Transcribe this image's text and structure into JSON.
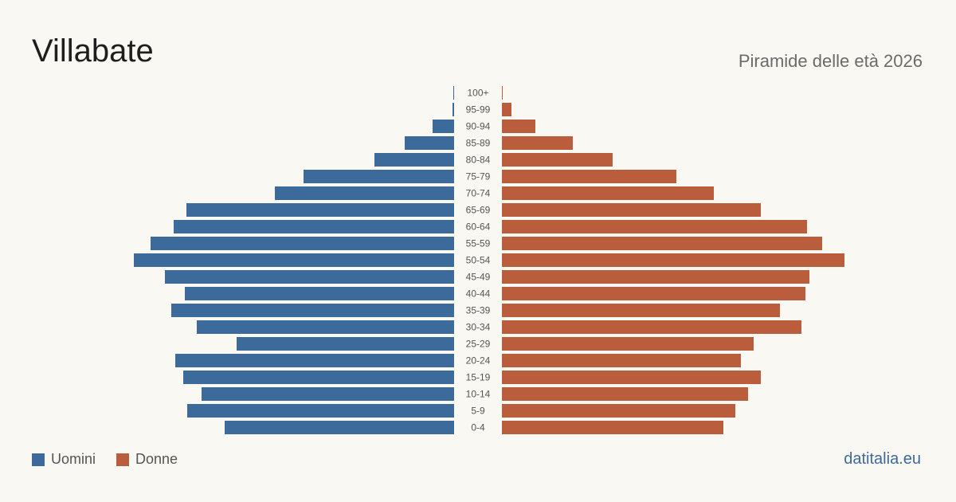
{
  "header": {
    "title": "Villabate",
    "subtitle": "Piramide delle età 2026"
  },
  "legend": {
    "men_label": "Uomini",
    "women_label": "Donne"
  },
  "source": "datitalia.eu",
  "colors": {
    "men": "#3b6a9b",
    "women": "#b95d3d"
  },
  "chart_data": {
    "type": "bar",
    "orientation": "horizontal-pyramid",
    "categories": [
      "100+",
      "95-99",
      "90-94",
      "85-89",
      "80-84",
      "75-79",
      "70-74",
      "65-69",
      "60-64",
      "55-59",
      "50-54",
      "45-49",
      "40-44",
      "35-39",
      "30-34",
      "25-29",
      "20-24",
      "15-19",
      "10-14",
      "5-9",
      "0-4"
    ],
    "series": [
      {
        "name": "Uomini",
        "values": [
          1,
          2,
          27,
          62,
          100,
          189,
          225,
          336,
          352,
          381,
          402,
          363,
          338,
          355,
          323,
          273,
          350,
          340,
          317,
          335,
          288
        ]
      },
      {
        "name": "Donne",
        "values": [
          1,
          12,
          42,
          89,
          139,
          219,
          266,
          325,
          383,
          402,
          430,
          386,
          381,
          349,
          376,
          316,
          300,
          325,
          309,
          293,
          278
        ]
      }
    ],
    "grid": false,
    "legend_position": "bottom-left"
  }
}
